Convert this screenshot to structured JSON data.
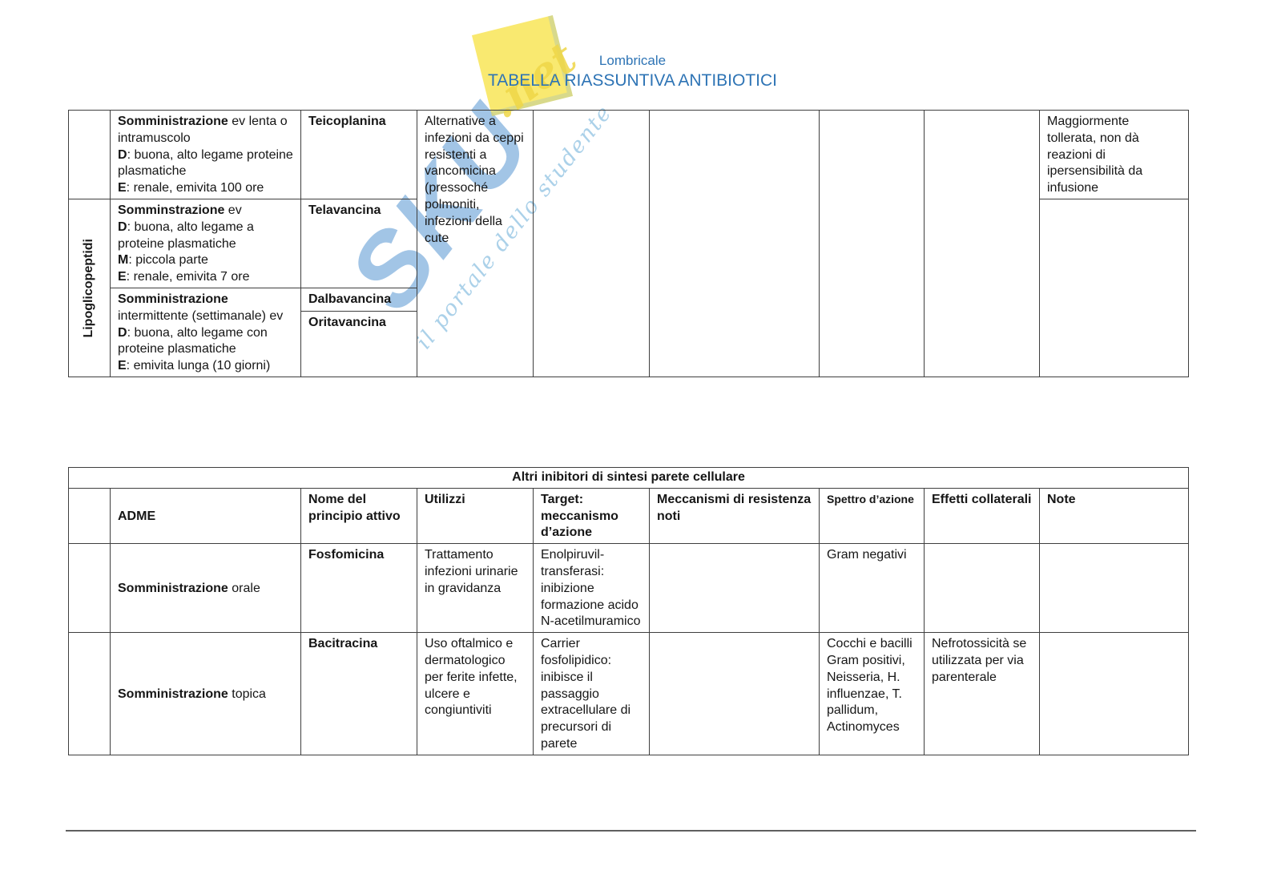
{
  "header": {
    "author": "Lombricale",
    "title": "TABELLA RIASSUNTIVA ANTIBIOTICI"
  },
  "watermark": {
    "brand": "SKU",
    "net": ".net",
    "tagline": "il portale dello studente"
  },
  "colors": {
    "title_blue": "#2E74B5",
    "band_green": "#C5E0B3",
    "header_green": "#E2EFD9",
    "cell_gray": "#D9D9D9"
  },
  "table1": {
    "group_label": "Lipoglicopeptidi",
    "adme": [
      [
        [
          {
            "b": 1,
            "t": "Somministrazione"
          },
          {
            "t": " ev lenta o intramuscolo"
          }
        ],
        [
          {
            "b": 1,
            "t": "D"
          },
          {
            "t": ": buona, alto legame proteine plasmatiche"
          }
        ],
        [
          {
            "b": 1,
            "t": "E"
          },
          {
            "t": ": renale, emivita 100 ore"
          }
        ]
      ],
      [
        [
          {
            "b": 1,
            "t": "Somminstrazione"
          },
          {
            "t": " ev"
          }
        ],
        [
          {
            "b": 1,
            "t": "D"
          },
          {
            "t": ": buona, alto legame a proteine plasmatiche"
          }
        ],
        [
          {
            "b": 1,
            "t": "M"
          },
          {
            "t": ": piccola parte"
          }
        ],
        [
          {
            "b": 1,
            "t": "E"
          },
          {
            "t": ": renale, emivita 7 ore"
          }
        ]
      ],
      [
        [
          {
            "b": 1,
            "t": "Somministrazione"
          },
          {
            "t": " intermittente (settimanale) ev"
          }
        ],
        [
          {
            "b": 1,
            "t": "D"
          },
          {
            "t": ": buona, alto legame con proteine plasmatiche"
          }
        ],
        [
          {
            "b": 1,
            "t": "E"
          },
          {
            "t": ": emivita lunga (10 giorni)"
          }
        ]
      ]
    ],
    "drugs": [
      "Teicoplanina",
      "Telavancina",
      "Dalbavancina",
      "Oritavancina"
    ],
    "utilizzi": "Alternative a infezioni da ceppi resistenti a vancomicina (pressoché polmoniti, infezioni della cute",
    "note": "Maggiormente tollerata, non dà reazioni di ipersensibilità da infusione"
  },
  "table2": {
    "title": "Altri inibitori di sintesi parete cellulare",
    "headers": [
      "ADME",
      "Nome del principio attivo",
      "Utilizzi",
      "Target: meccanismo d’azione",
      "Meccanismi di resistenza noti",
      "Spettro d’azione",
      "Effetti collaterali",
      "Note"
    ],
    "rows": [
      {
        "adme": [
          [
            {
              "b": 1,
              "t": "Somministrazione"
            },
            {
              "t": " orale"
            }
          ]
        ],
        "name": "Fosfomicina",
        "utilizzi": "Trattamento infezioni urinarie in gravidanza",
        "target": "Enolpiruvil-transferasi: inibizione formazione acido N-acetilmuramico",
        "spettro": "Gram negativi",
        "effetti": ""
      },
      {
        "adme": [
          [
            {
              "b": 1,
              "t": "Somministrazione"
            },
            {
              "t": " topica"
            }
          ]
        ],
        "name": "Bacitracina",
        "utilizzi": "Uso oftalmico e dermatologico per ferite infette, ulcere e congiuntiviti",
        "target": "Carrier fosfolipidico: inibisce il passaggio extracellulare di precursori di parete",
        "spettro": "Cocchi e bacilli Gram positivi, Neisseria, H. influenzae, T. pallidum, Actinomyces",
        "effetti": "Nefrotossicità se utilizzata per via parenterale"
      }
    ]
  }
}
